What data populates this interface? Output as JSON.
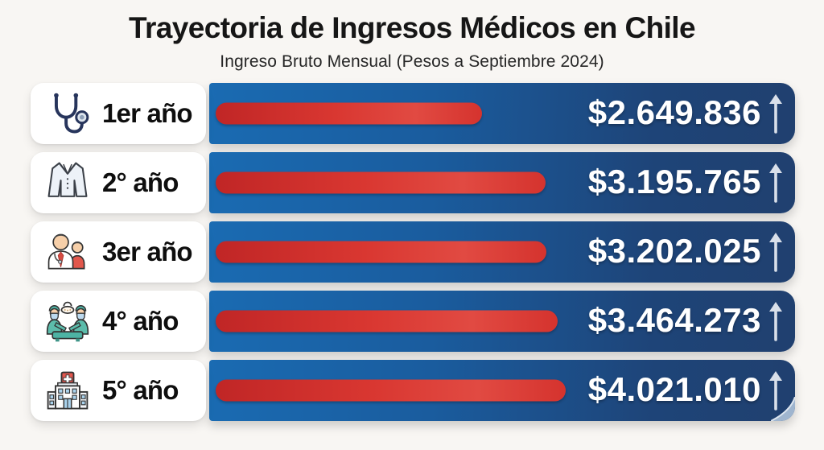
{
  "header": {
    "title": "Trayectoria de Ingresos Médicos en Chile",
    "subtitle": "Ingreso Bruto Mensual (Pesos a Septiembre 2024)"
  },
  "rows": [
    {
      "icon": "stethoscope-icon",
      "label": "1er año",
      "amount": "$2.649.836",
      "bar_pct": 45.5
    },
    {
      "icon": "lab-coat-icon",
      "label": "2° año",
      "amount": "$3.195.765",
      "bar_pct": 56.3
    },
    {
      "icon": "doctor-patient-icon",
      "label": "3er año",
      "amount": "$3.202.025",
      "bar_pct": 56.5
    },
    {
      "icon": "surgery-icon",
      "label": "4° año",
      "amount": "$3.464.273",
      "bar_pct": 58.4
    },
    {
      "icon": "hospital-icon",
      "label": "5° año",
      "amount": "$4.021.010",
      "bar_pct": 59.8
    }
  ],
  "colors": {
    "background": "#f8f6f3",
    "panel_blue_left": "#1a6bb2",
    "panel_blue_right": "#20406f",
    "bar_red": "#d5332e",
    "amount_text": "#ffffff",
    "arrow": "#d9e0ea",
    "label_text": "#0e0e0e",
    "card": "#ffffff"
  },
  "chart_data": {
    "type": "bar",
    "orientation": "horizontal",
    "title": "Trayectoria de Ingresos Médicos en Chile",
    "subtitle": "Ingreso Bruto Mensual (Pesos a Septiembre 2024)",
    "categories": [
      "1er año",
      "2° año",
      "3er año",
      "4° año",
      "5° año"
    ],
    "values": [
      2649836,
      3195765,
      3202025,
      3464273,
      4021010
    ],
    "value_labels": [
      "$2.649.836",
      "$3.195.765",
      "$3.202.025",
      "$3.464.273",
      "$4.021.010"
    ],
    "currency": "CLP",
    "bar_color": "#d5332e",
    "panel_color": "#1b5c9e",
    "trend_indicator": "up-arrow",
    "legend": "none",
    "grid": false
  }
}
